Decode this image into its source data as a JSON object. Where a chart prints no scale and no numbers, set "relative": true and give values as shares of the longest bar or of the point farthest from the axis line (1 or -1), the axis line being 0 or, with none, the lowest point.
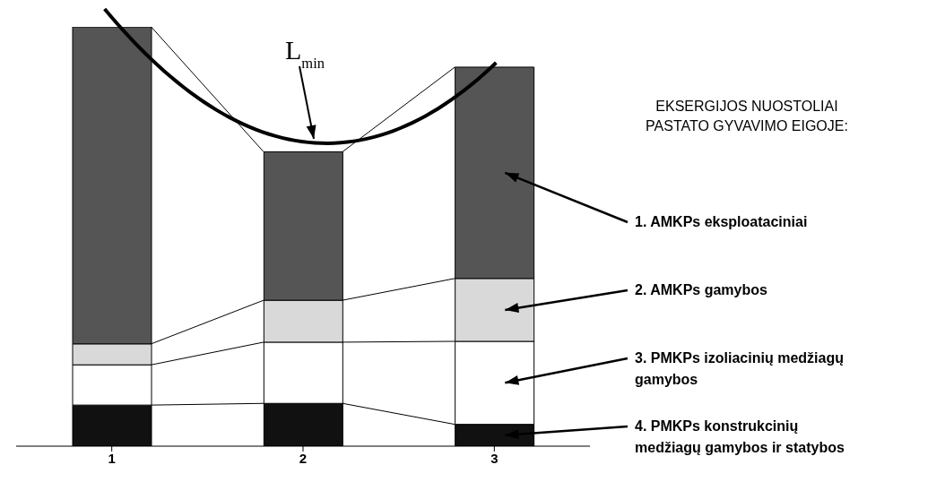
{
  "chart_data": {
    "type": "bar",
    "stacked": true,
    "relative": true,
    "categories": [
      "1",
      "2",
      "3"
    ],
    "legend_title": "EKSERGIJOS NUOSTOLIAI PASTATO GYVAVIMO EIGOJE:",
    "legend": "right",
    "annotations": [
      "L$_{min}$"
    ],
    "series": [
      {
        "name": "4. PMKPs konstrukcinių medžiagų gamybos ir statybos",
        "color": "#111111",
        "values": [
          0.098,
          0.102,
          0.052
        ]
      },
      {
        "name": "3. PMKPs izoliacinių medžiagų gamybos",
        "color": "#ffffff",
        "values": [
          0.096,
          0.146,
          0.198
        ]
      },
      {
        "name": "2. AMKPs gamybos",
        "color": "#d9d9d9",
        "values": [
          0.05,
          0.1,
          0.15
        ]
      },
      {
        "name": "1. AMKPs eksploataciniai",
        "color": "#555555",
        "values": [
          0.756,
          0.354,
          0.504
        ]
      }
    ]
  }
}
